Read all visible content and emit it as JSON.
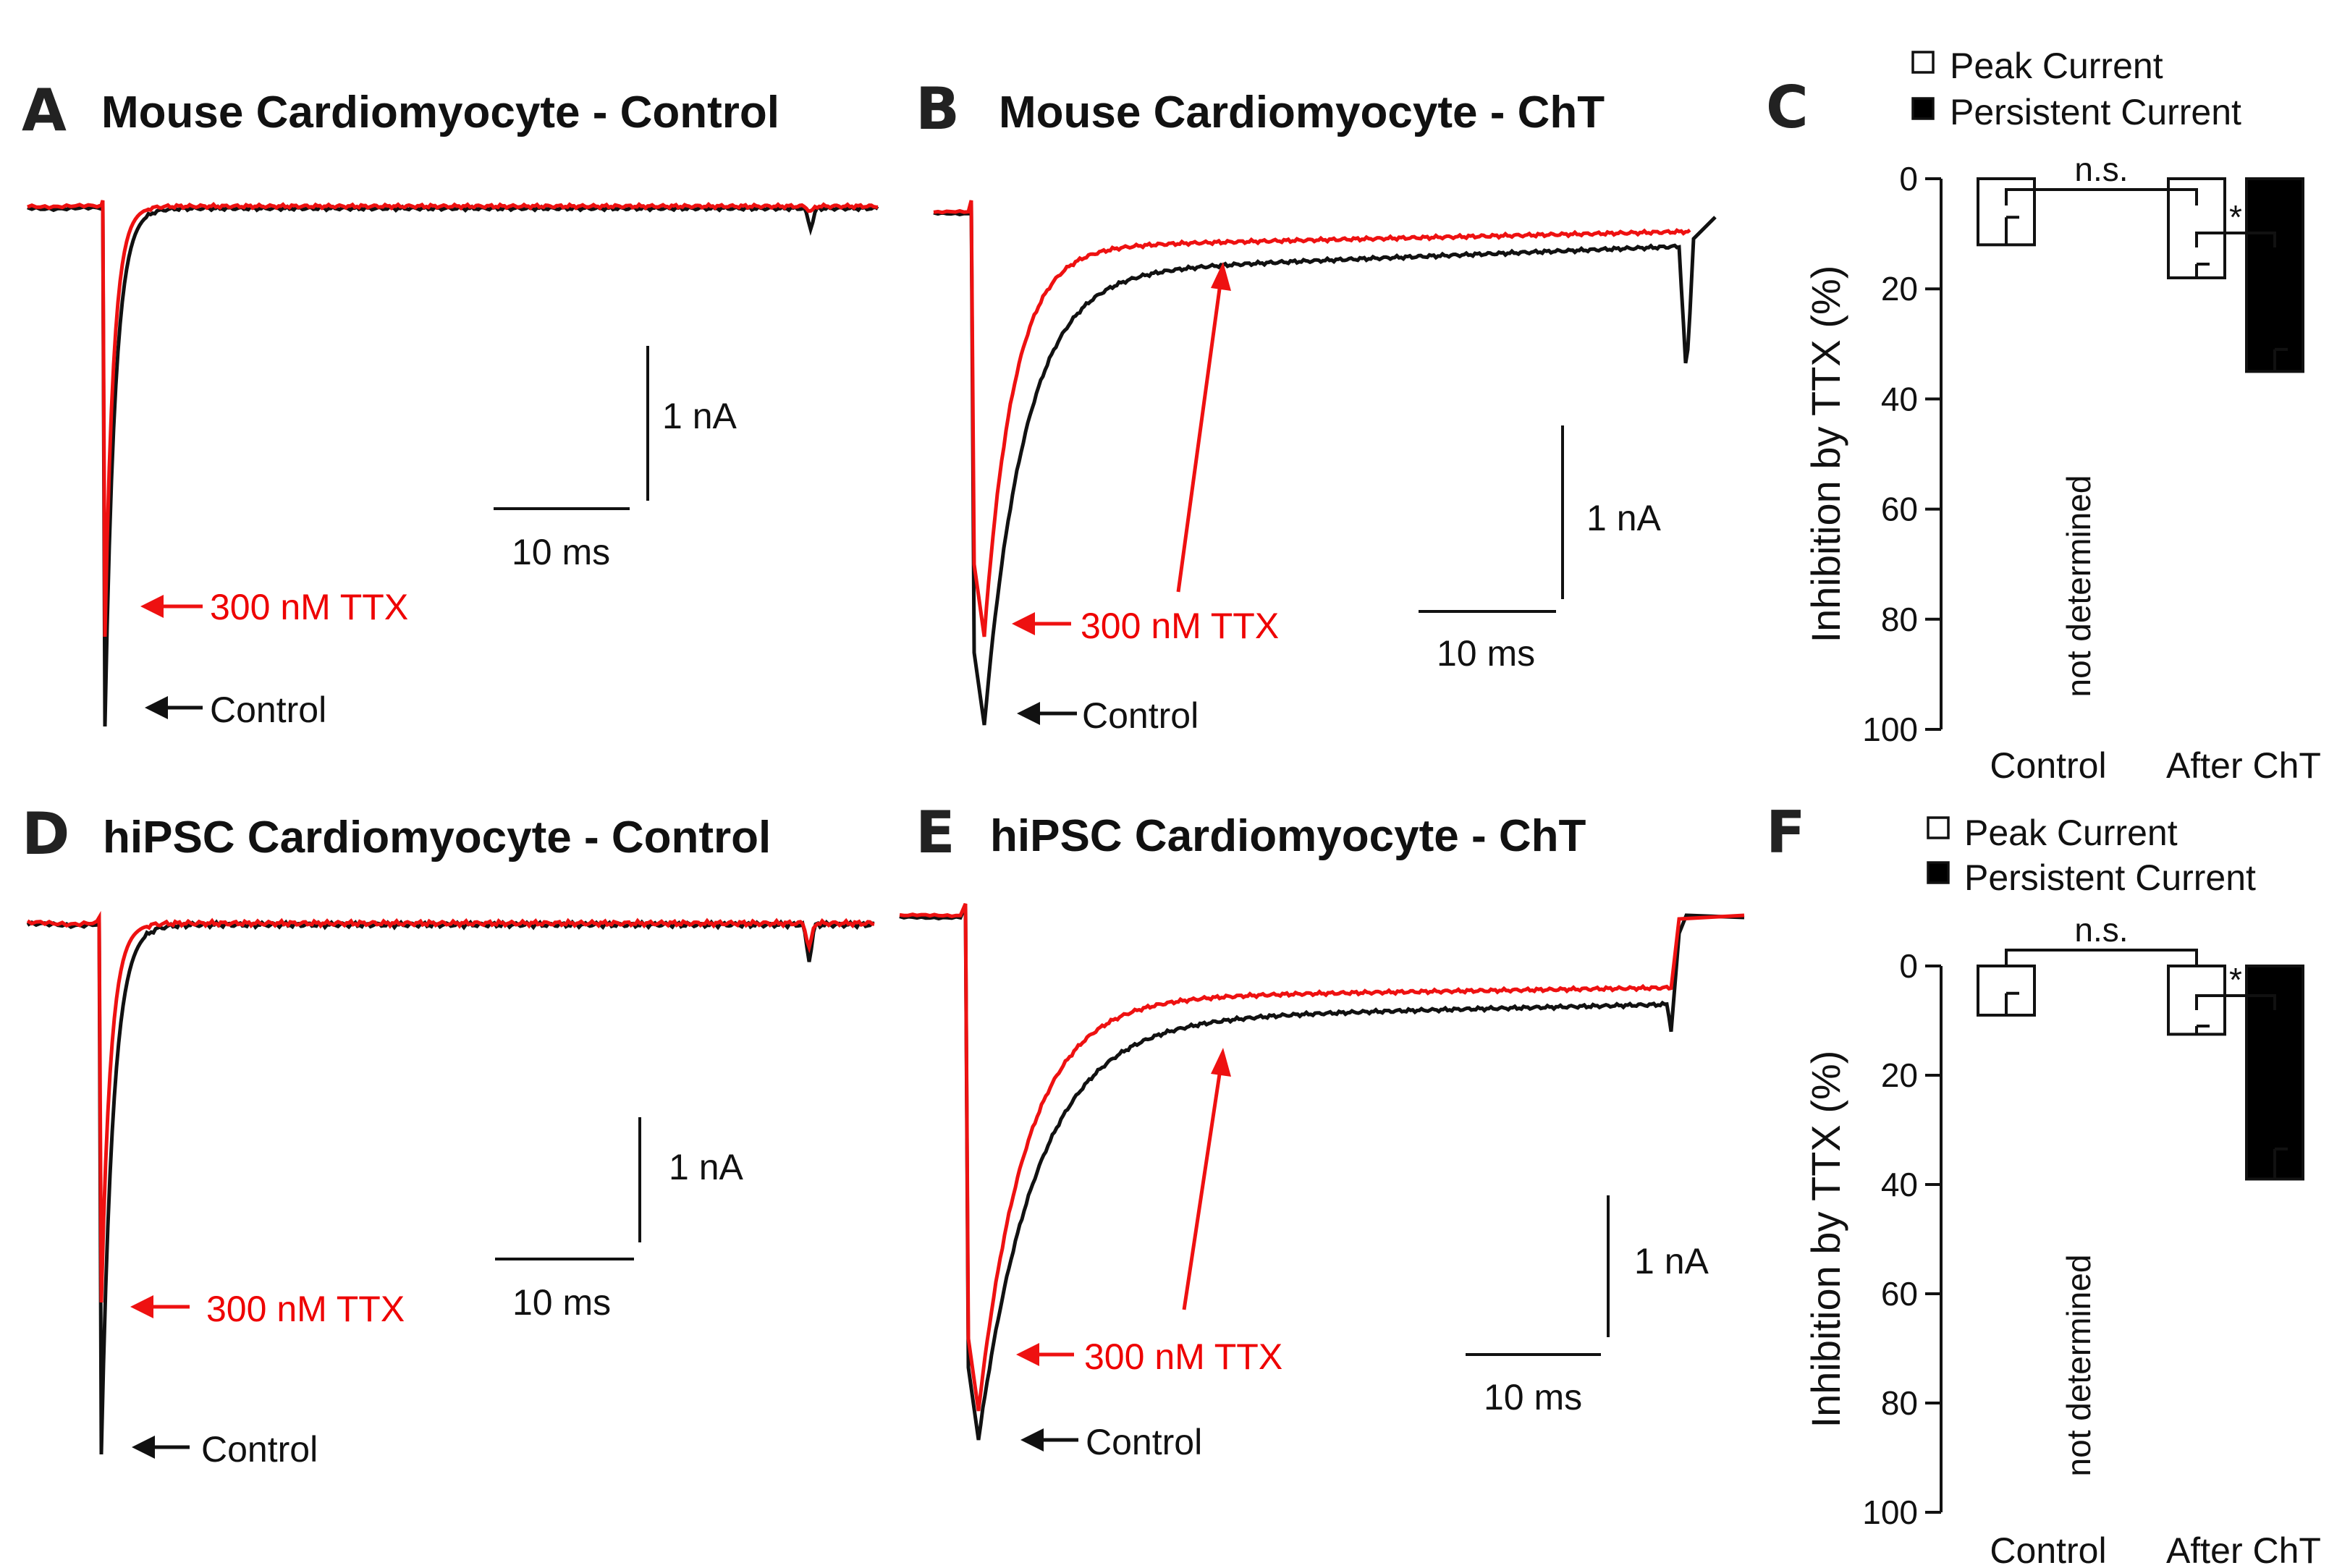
{
  "colors": {
    "control": "#111111",
    "ttx": "#ee1111",
    "persistent_bar": "#000000",
    "peak_bar": "#ffffff"
  },
  "panels": [
    {
      "letter": "A",
      "title": "Mouse Cardiomyocyte - Control",
      "scale_y": "1 nA",
      "scale_x": "10 ms",
      "ttx_label": "300 nM TTX",
      "control_label": "Control"
    },
    {
      "letter": "B",
      "title": "Mouse Cardiomyocyte - ChT",
      "scale_y": "1 nA",
      "scale_x": "10 ms",
      "ttx_label": "300 nM TTX",
      "control_label": "Control"
    },
    {
      "letter": "D",
      "title": "hiPSC Cardiomyocyte - Control",
      "scale_y": "1 nA",
      "scale_x": "10 ms",
      "ttx_label": "300 nM TTX",
      "control_label": "Control"
    },
    {
      "letter": "E",
      "title": "hiPSC Cardiomyocyte - ChT",
      "scale_y": "1 nA",
      "scale_x": "10 ms",
      "ttx_label": "300 nM TTX",
      "control_label": "Control"
    }
  ],
  "chart_data": [
    {
      "type": "bar",
      "panel": "C",
      "ylabel": "Inhibition by TTX (%)",
      "ylim": [
        0,
        100
      ],
      "y_inverted": true,
      "yticks": [
        0,
        20,
        40,
        60,
        80,
        100
      ],
      "categories": [
        "Control",
        "After ChT"
      ],
      "series": [
        {
          "name": "Peak Current",
          "values": [
            12,
            18
          ],
          "errors": [
            5,
            2.5
          ]
        },
        {
          "name": "Persistent Current",
          "values": [
            null,
            35
          ],
          "errors": [
            null,
            4
          ]
        }
      ],
      "annotations": {
        "not_determined": "not determined",
        "ns": "n.s.",
        "star": "*"
      },
      "legend": [
        "Peak Current",
        "Persistent Current"
      ]
    },
    {
      "type": "bar",
      "panel": "F",
      "ylabel": "Inhibition by TTX (%)",
      "ylim": [
        0,
        100
      ],
      "y_inverted": true,
      "yticks": [
        0,
        20,
        40,
        60,
        80,
        100
      ],
      "categories": [
        "Control",
        "After ChT"
      ],
      "series": [
        {
          "name": "Peak Current",
          "values": [
            9,
            12.5
          ],
          "errors": [
            4,
            1.5
          ]
        },
        {
          "name": "Persistent Current",
          "values": [
            null,
            39
          ],
          "errors": [
            null,
            5.5
          ]
        }
      ],
      "annotations": {
        "not_determined": "not determined",
        "ns": "n.s.",
        "star": "*"
      },
      "legend": [
        "Peak Current",
        "Persistent Current"
      ]
    }
  ]
}
